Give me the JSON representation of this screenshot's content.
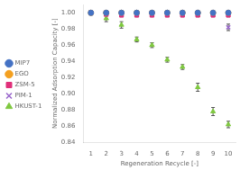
{
  "chart_data": {
    "type": "scatter",
    "xlabel": "Regeneration Recycle [-]",
    "ylabel": "Normalized Adsorption Capacity [-]",
    "x": [
      1,
      2,
      3,
      4,
      5,
      6,
      7,
      8,
      9,
      10
    ],
    "series": [
      {
        "name": "MIP7",
        "color": "#4472c4",
        "marker": "circle",
        "values": [
          1.0,
          1.0,
          1.0,
          1.0,
          1.0,
          1.0,
          1.0,
          1.0,
          1.0,
          1.0
        ],
        "yerr": [
          0.002,
          0.002,
          0.002,
          0.002,
          0.002,
          0.002,
          0.002,
          0.002,
          0.002,
          0.002
        ]
      },
      {
        "name": "EGO",
        "color": "#f4a020",
        "marker": "circle",
        "values": [
          1.0,
          1.0,
          1.0,
          1.0,
          1.0,
          1.0,
          1.0,
          1.0,
          1.0,
          1.0
        ],
        "yerr": [
          0.002,
          0.002,
          0.002,
          0.002,
          0.002,
          0.002,
          0.002,
          0.002,
          0.002,
          0.002
        ]
      },
      {
        "name": "ZSM-5",
        "color": "#e0307a",
        "marker": "square",
        "values": [
          1.0,
          0.998,
          0.997,
          0.997,
          0.997,
          0.997,
          0.997,
          0.997,
          0.997,
          0.997
        ],
        "yerr": [
          0.002,
          0.002,
          0.002,
          0.002,
          0.002,
          0.002,
          0.002,
          0.002,
          0.002,
          0.002
        ]
      },
      {
        "name": "PIM-1",
        "color": "#9966cc",
        "marker": "x",
        "values": [
          1.0,
          0.999,
          0.998,
          0.998,
          0.998,
          0.998,
          0.998,
          0.998,
          0.998,
          0.982
        ],
        "yerr": [
          0.002,
          0.002,
          0.002,
          0.002,
          0.002,
          0.002,
          0.002,
          0.002,
          0.002,
          0.004
        ]
      },
      {
        "name": "HKUST-1",
        "color": "#7fc840",
        "marker": "triangle",
        "values": [
          1.0,
          0.993,
          0.985,
          0.967,
          0.96,
          0.942,
          0.933,
          0.908,
          0.878,
          0.862
        ],
        "yerr": [
          0.003,
          0.004,
          0.004,
          0.003,
          0.003,
          0.003,
          0.003,
          0.005,
          0.005,
          0.004
        ]
      }
    ],
    "xlim": [
      0.5,
      10.5
    ],
    "ylim": [
      0.84,
      1.01
    ],
    "xticks": [
      1,
      2,
      3,
      4,
      5,
      6,
      7,
      8,
      9,
      10
    ],
    "yticks": [
      0.84,
      0.86,
      0.88,
      {
        "value": 0.9,
        "label": "0.90"
      },
      0.92,
      0.94,
      0.96,
      0.98,
      {
        "value": 1.0,
        "label": "1.00"
      }
    ],
    "grid": false,
    "legend": "left"
  }
}
